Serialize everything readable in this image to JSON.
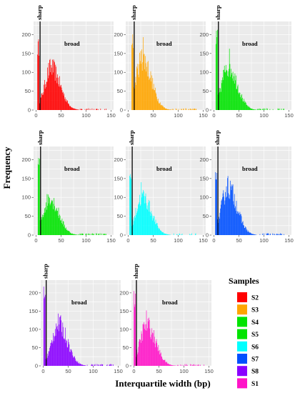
{
  "chart_data": {
    "type": "bar",
    "xlabel": "Interquartile width (bp)",
    "ylabel": "Frequency",
    "xlim": [
      -5,
      155
    ],
    "ylim": [
      0,
      235
    ],
    "xticks": [
      0,
      50,
      100,
      150
    ],
    "yticks": [
      0,
      50,
      100,
      150,
      200
    ],
    "grid": true,
    "annotations": {
      "sharp": "sharp",
      "broad": "broad"
    },
    "legend": {
      "title": "Samples",
      "placement": "bottom-right",
      "entries": [
        {
          "label": "S2",
          "color": "#ff0000"
        },
        {
          "label": "S3",
          "color": "#ffa500"
        },
        {
          "label": "S4",
          "color": "#00e400"
        },
        {
          "label": "S5",
          "color": "#00e400"
        },
        {
          "label": "S6",
          "color": "#00ffff"
        },
        {
          "label": "S7",
          "color": "#0050ff"
        },
        {
          "label": "S8",
          "color": "#8a00ff"
        },
        {
          "label": "S1",
          "color": "#ff14c8"
        }
      ]
    },
    "panels": [
      {
        "sample": "S2",
        "color": "#ff0000",
        "sharp_x": 4,
        "sharp_height": 190,
        "sharp_width": 3,
        "peak_x": 30,
        "peak_height": 115,
        "tail_to": 140,
        "spikes": [
          [
            3,
            30
          ],
          [
            4,
            30
          ]
        ]
      },
      {
        "sample": "S3",
        "color": "#ffa500",
        "sharp_x": 8,
        "sharp_height": 215,
        "sharp_width": 3,
        "peak_x": 28,
        "peak_height": 140,
        "tail_to": 140,
        "spikes": [
          [
            27,
            40
          ],
          [
            30,
            55
          ]
        ]
      },
      {
        "sample": "S4",
        "color": "#00e400",
        "sharp_x": 5,
        "sharp_height": 215,
        "sharp_width": 3,
        "peak_x": 28,
        "peak_height": 120,
        "tail_to": 140,
        "spikes": [
          [
            24,
            25
          ],
          [
            31,
            20
          ]
        ]
      },
      {
        "sample": "S5",
        "color": "#00e400",
        "sharp_x": 5,
        "sharp_height": 215,
        "sharp_width": 3,
        "peak_x": 27,
        "peak_height": 100,
        "tail_to": 140,
        "spikes": [
          [
            30,
            15
          ]
        ]
      },
      {
        "sample": "S6",
        "color": "#00ffff",
        "sharp_x": 4,
        "sharp_height": 180,
        "sharp_width": 3,
        "peak_x": 28,
        "peak_height": 105,
        "tail_to": 140,
        "spikes": [
          [
            26,
            20
          ]
        ]
      },
      {
        "sample": "S7",
        "color": "#0050ff",
        "sharp_x": 4,
        "sharp_height": 195,
        "sharp_width": 3,
        "peak_x": 28,
        "peak_height": 130,
        "tail_to": 140,
        "spikes": [
          [
            28,
            25
          ]
        ]
      },
      {
        "sample": "S8",
        "color": "#8a00ff",
        "sharp_x": 2,
        "sharp_height": 220,
        "sharp_width": 3,
        "peak_x": 30,
        "peak_height": 118,
        "tail_to": 140,
        "spikes": [
          [
            2,
            20
          ]
        ]
      },
      {
        "sample": "S1",
        "color": "#ff14c8",
        "sharp_x": 1,
        "sharp_height": 215,
        "sharp_width": 3,
        "peak_x": 25,
        "peak_height": 115,
        "tail_to": 140,
        "spikes": [
          [
            25,
            15
          ]
        ]
      }
    ]
  }
}
